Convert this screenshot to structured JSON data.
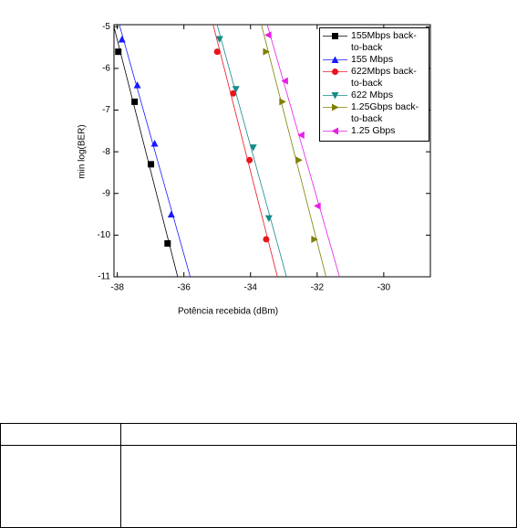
{
  "chart_data": {
    "type": "scatter",
    "xlabel": "Potência recebida (dBm)",
    "ylabel": "min log(BER)",
    "xlim": [
      -38.1,
      -28.6
    ],
    "ylim": [
      -11,
      -4.95
    ],
    "xticks": [
      -38,
      -36,
      -34,
      -32,
      -30
    ],
    "yticks": [
      -5,
      -6,
      -7,
      -8,
      -9,
      -10,
      -11
    ],
    "legend": "top-right",
    "trendline": true,
    "series": [
      {
        "name": "155Mbps back-to-back",
        "color": "#000000",
        "marker": "square",
        "x": [
          -37.97,
          -37.48,
          -36.99,
          -36.49
        ],
        "values": [
          -5.6,
          -6.8,
          -8.3,
          -10.2
        ]
      },
      {
        "name": "155 Mbps",
        "color": "#1a1aff",
        "marker": "triangle-up",
        "x": [
          -37.86,
          -37.4,
          -36.88,
          -36.38
        ],
        "values": [
          -5.3,
          -6.4,
          -7.8,
          -9.5
        ]
      },
      {
        "name": "622Mbps back-to-back",
        "color": "#e8141e",
        "marker": "circle",
        "x": [
          -35.0,
          -34.52,
          -34.03,
          -33.53
        ],
        "values": [
          -5.6,
          -6.6,
          -8.2,
          -10.1
        ]
      },
      {
        "name": "622 Mbps",
        "color": "#168a8a",
        "marker": "triangle-down",
        "x": [
          -34.93,
          -34.44,
          -33.92,
          -33.45
        ],
        "values": [
          -5.3,
          -6.5,
          -7.9,
          -9.6
        ]
      },
      {
        "name": "1.25Gbps back-to-back",
        "color": "#7f7f00",
        "marker": "triangle-right",
        "x": [
          -33.53,
          -33.04,
          -32.55,
          -32.08
        ],
        "values": [
          -5.6,
          -6.8,
          -8.2,
          -10.1
        ]
      },
      {
        "name": "1.25 Gbps",
        "color": "#e61ee6",
        "marker": "triangle-left",
        "x": [
          -33.47,
          -32.97,
          -32.48,
          -31.99
        ],
        "values": [
          -5.2,
          -6.3,
          -7.6,
          -9.3
        ]
      }
    ]
  }
}
